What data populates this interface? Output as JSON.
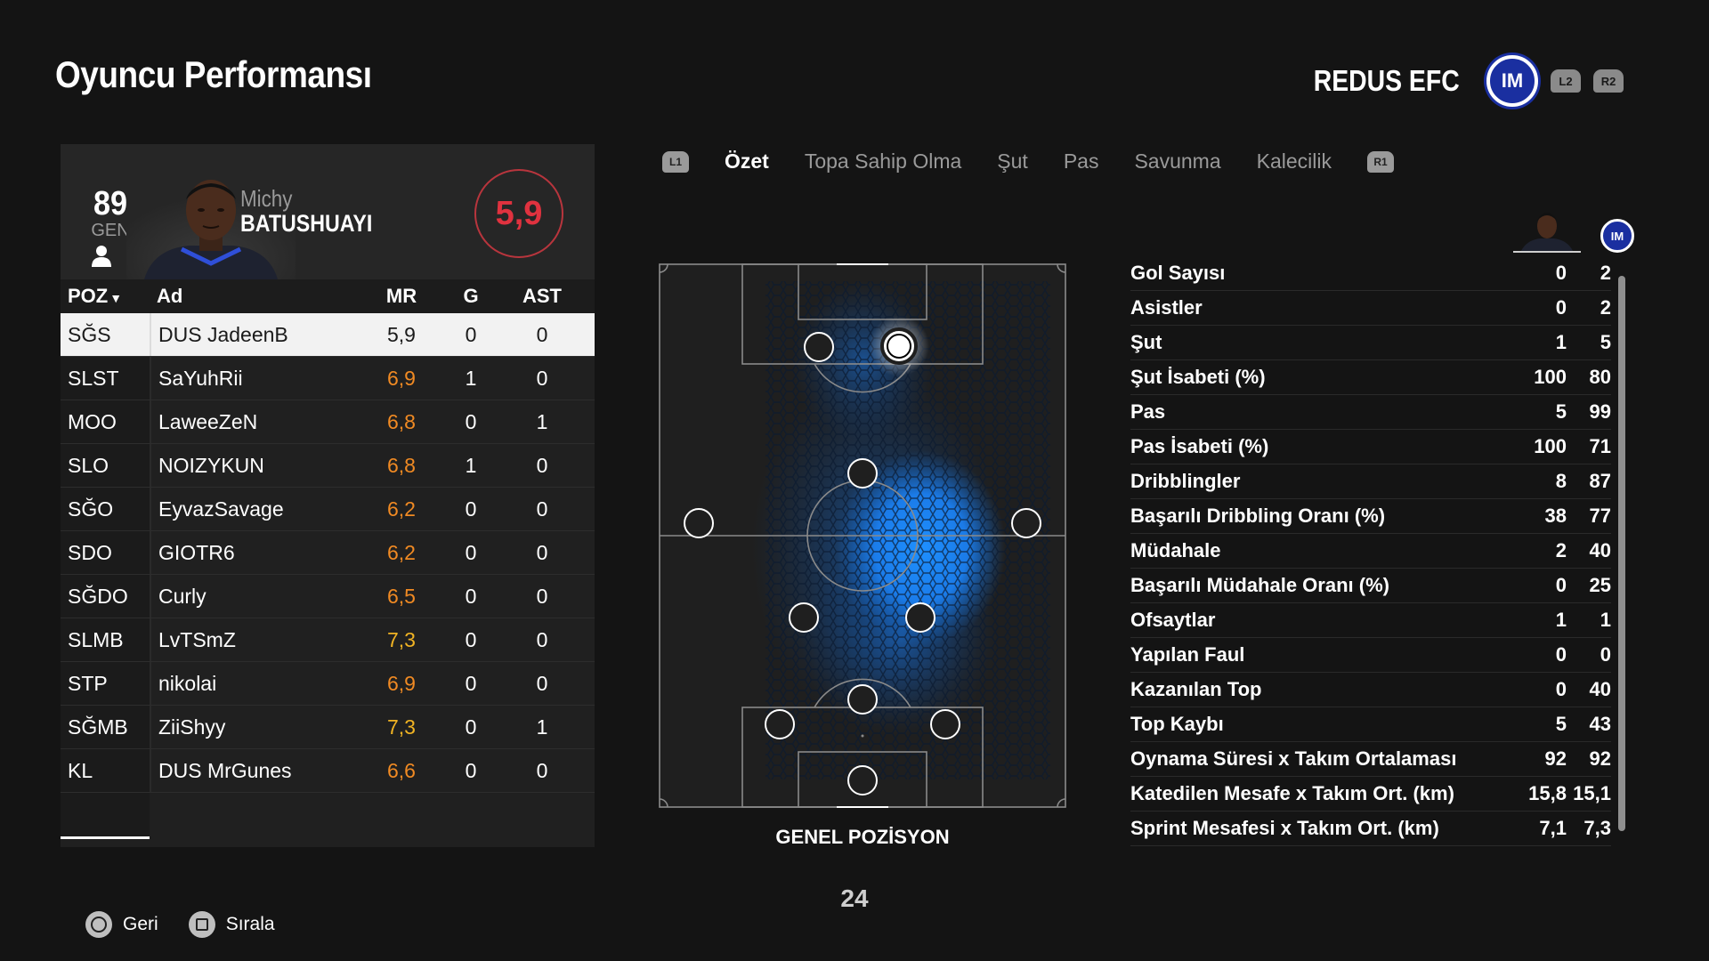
{
  "page_title": "Oyuncu Performansı",
  "team": {
    "name": "REDUS EFC",
    "logo_text": "IM",
    "l2": "L2",
    "r2": "R2"
  },
  "player": {
    "ovr": "89",
    "ovr_label": "GEN",
    "first_name": "Michy",
    "last_name": "BATUSHUAYI",
    "match_rating": "5,9"
  },
  "table": {
    "headers": {
      "pos": "POZ",
      "name": "Ad",
      "mr": "MR",
      "g": "G",
      "ast": "AST"
    },
    "rows": [
      {
        "pos": "SĞS",
        "name": "DUS JadeenB",
        "mr": "5,9",
        "g": "0",
        "ast": "0"
      },
      {
        "pos": "SLST",
        "name": "SaYuhRii",
        "mr": "6,9",
        "g": "1",
        "ast": "0"
      },
      {
        "pos": "MOO",
        "name": "LaweeZeN",
        "mr": "6,8",
        "g": "0",
        "ast": "1"
      },
      {
        "pos": "SLO",
        "name": "NOIZYKUN",
        "mr": "6,8",
        "g": "1",
        "ast": "0"
      },
      {
        "pos": "SĞO",
        "name": "EyvazSavage",
        "mr": "6,2",
        "g": "0",
        "ast": "0"
      },
      {
        "pos": "SDO",
        "name": "GIOTR6",
        "mr": "6,2",
        "g": "0",
        "ast": "0"
      },
      {
        "pos": "SĞDO",
        "name": "Curly",
        "mr": "6,5",
        "g": "0",
        "ast": "0"
      },
      {
        "pos": "SLMB",
        "name": "LvTSmZ",
        "mr": "7,3",
        "g": "0",
        "ast": "0"
      },
      {
        "pos": "STP",
        "name": "nikolai",
        "mr": "6,9",
        "g": "0",
        "ast": "0"
      },
      {
        "pos": "SĞMB",
        "name": "ZiiShyy",
        "mr": "7,3",
        "g": "0",
        "ast": "1"
      },
      {
        "pos": "KL",
        "name": "DUS MrGunes",
        "mr": "6,6",
        "g": "0",
        "ast": "0"
      }
    ]
  },
  "tabs": {
    "l1": "L1",
    "r1": "R1",
    "items": [
      "Özet",
      "Topa Sahip Olma",
      "Şut",
      "Pas",
      "Savunma",
      "Kalecilik"
    ]
  },
  "pitch_caption": "GENEL POZİSYON",
  "page_number": "24",
  "stats": [
    {
      "label": "Gol Sayısı",
      "player": "0",
      "team": "2"
    },
    {
      "label": "Asistler",
      "player": "0",
      "team": "2"
    },
    {
      "label": "Şut",
      "player": "1",
      "team": "5"
    },
    {
      "label": "Şut İsabeti (%)",
      "player": "100",
      "team": "80"
    },
    {
      "label": "Pas",
      "player": "5",
      "team": "99"
    },
    {
      "label": "Pas İsabeti (%)",
      "player": "100",
      "team": "71"
    },
    {
      "label": "Dribblingler",
      "player": "8",
      "team": "87"
    },
    {
      "label": "Başarılı Dribbling Oranı (%)",
      "player": "38",
      "team": "77"
    },
    {
      "label": "Müdahale",
      "player": "2",
      "team": "40"
    },
    {
      "label": "Başarılı Müdahale Oranı (%)",
      "player": "0",
      "team": "25"
    },
    {
      "label": "Ofsaytlar",
      "player": "1",
      "team": "1"
    },
    {
      "label": "Yapılan Faul",
      "player": "0",
      "team": "0"
    },
    {
      "label": "Kazanılan Top",
      "player": "0",
      "team": "40"
    },
    {
      "label": "Top Kaybı",
      "player": "5",
      "team": "43"
    },
    {
      "label": "Oynama Süresi x Takım Ortalaması",
      "player": "92",
      "team": "92"
    },
    {
      "label": "Katedilen Mesafe x Takım Ort. (km)",
      "player": "15,8",
      "team": "15,1"
    },
    {
      "label": "Sprint Mesafesi x Takım Ort. (km)",
      "player": "7,1",
      "team": "7,3"
    }
  ],
  "footer": {
    "back": "Geri",
    "sort": "Sırala"
  },
  "colors": {
    "accent_red": "#e0323f",
    "rating_orange": "#f08a23",
    "rating_gold": "#f0b323",
    "heat_blue": "#1e88ff",
    "team_blue": "#1a2fa0"
  }
}
